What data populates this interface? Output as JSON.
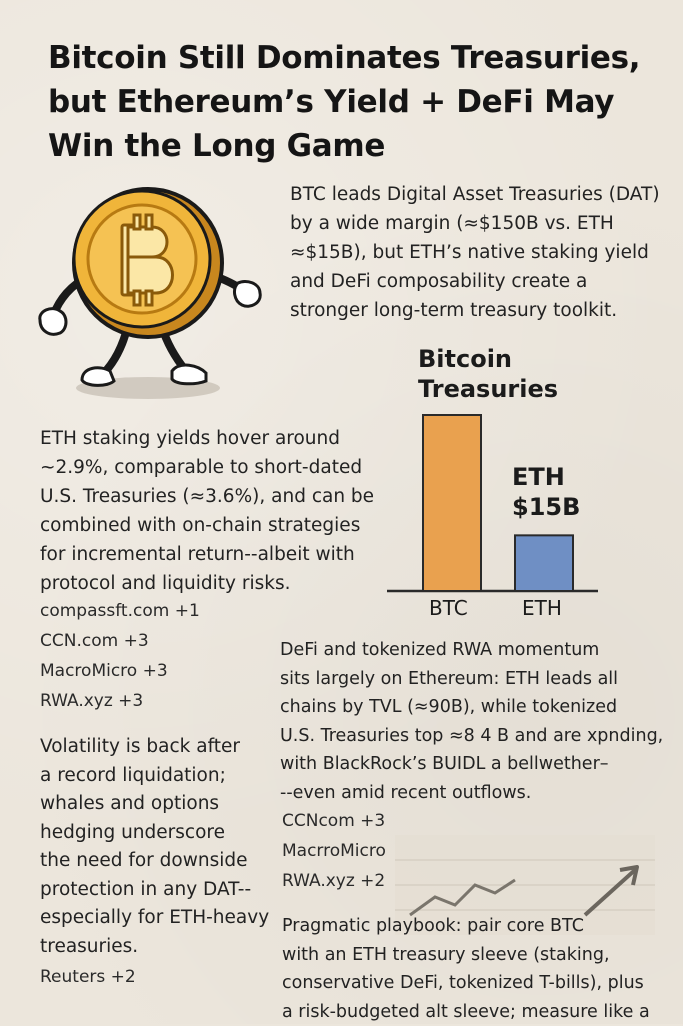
{
  "headline": {
    "line1": "Bitcoin Still Dominates Treasuries,",
    "line2": "but Ethereum’s Yield + DeFi May",
    "line3": "Win the Long Game"
  },
  "intro": {
    "lines": [
      "BTC leads Digital Asset Treasuries (DAT)",
      "by a wide margin (≈$150B vs. ETH",
      "≈$15B), but ETH’s native staking yield",
      "and DeFi composability create a",
      "stronger long-term treasury toolkit."
    ]
  },
  "staking": {
    "lines": [
      "ETH staking yields hover around",
      "~2.9%, comparable to short-dated",
      "U.S. Treasuries (≈3.6%), and can be",
      "combined with on-chain strategies",
      "for incremental return--albeit with",
      "protocol and liquidity risks."
    ]
  },
  "sources1": {
    "lines": [
      "compassft.com +1",
      "CCN.com  +3",
      "MacroMicro  +3",
      "RWA.xyz  +3"
    ]
  },
  "volatility": {
    "lines": [
      "Volatility is back after",
      "a record liquidation;",
      "whales and options",
      "hedging underscore",
      "the need for downside",
      "protection in any DAT--",
      "especially for ETH-heavy",
      "treasuries."
    ]
  },
  "sources_reuters": {
    "line": "Reuters  +2"
  },
  "defi": {
    "lines": [
      "DeFi and tokenized RWA momentum",
      "sits largely on Ethereum: ETH leads all",
      "chains by TVL (≈90B), while tokenized",
      "U.S. Treasuries top ≈8 4 B and are xpnding,",
      "with BlackRock’s BUIDL a bellwether–",
      "--even amid recent outflows."
    ]
  },
  "sources2": {
    "lines": [
      "CCNcom +3",
      "MacrroMicro",
      "RWA.xyz +2"
    ]
  },
  "playbook": {
    "lines": [
      "Pragmatic playbook: pair core BTC",
      "with an ETH treasury sleeve (staking,",
      "conservative DeFi, tokenized T-bills), plus",
      "a risk-budgeted alt sleeve; measure like a"
    ]
  },
  "chart_data": {
    "type": "bar",
    "title_line1": "Bitcoin",
    "title_line2": "Treasuries",
    "categories": [
      "BTC",
      "ETH"
    ],
    "values": [
      150,
      15
    ],
    "bar_colors": [
      "#e9a14f",
      "#6f8fc4"
    ],
    "eth_label_line1": "ETH",
    "eth_label_line2": "$15B"
  },
  "colors": {
    "background": "#ece6dc",
    "coin_gold": "#f0b53a",
    "btc_bar": "#e9a14f",
    "eth_bar": "#6f8fc4"
  },
  "icons": {
    "mascot": "bitcoin-coin-mascot",
    "trend": "upward-trend-sketch"
  }
}
